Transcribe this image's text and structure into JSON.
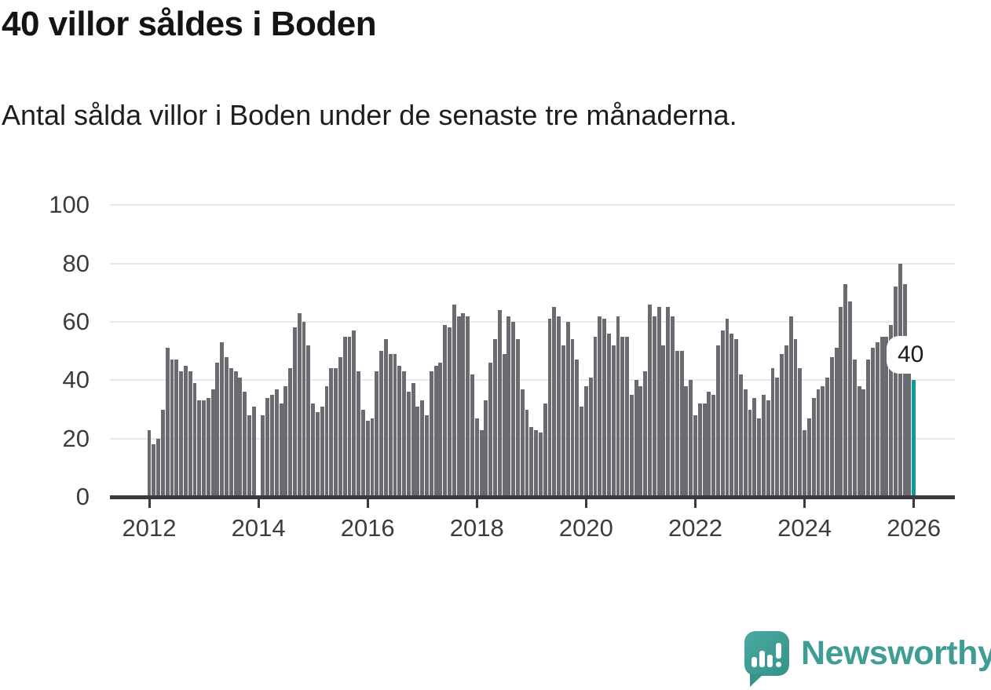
{
  "header": {
    "title": "40 villor såldes i Boden",
    "subtitle": "Antal sålda villor i Boden under de senaste tre månaderna."
  },
  "chart_data": {
    "type": "bar",
    "title": "40 villor såldes i Boden",
    "subtitle": "Antal sålda villor i Boden under de senaste tre månaderna.",
    "unit": "sålda villor (rullande 3 månader)",
    "x_start": "2012-01",
    "frequency": "monthly",
    "x_tick_labels": [
      "2012",
      "2014",
      "2016",
      "2018",
      "2020",
      "2022",
      "2024",
      "2026"
    ],
    "y_ticks": [
      0,
      20,
      40,
      60,
      80,
      100
    ],
    "ylim": [
      0,
      100
    ],
    "grid": true,
    "values": [
      23,
      18,
      20,
      30,
      51,
      47,
      47,
      43,
      45,
      43,
      39,
      33,
      33,
      34,
      37,
      46,
      53,
      48,
      44,
      43,
      41,
      36,
      28,
      31,
      0,
      28,
      34,
      35,
      37,
      32,
      38,
      44,
      58,
      63,
      60,
      52,
      32,
      29,
      31,
      38,
      44,
      44,
      48,
      55,
      55,
      57,
      43,
      30,
      26,
      27,
      43,
      50,
      54,
      49,
      49,
      45,
      43,
      36,
      39,
      31,
      33,
      28,
      43,
      45,
      46,
      59,
      58,
      66,
      62,
      63,
      62,
      42,
      27,
      23,
      33,
      46,
      54,
      64,
      49,
      62,
      60,
      54,
      37,
      30,
      24,
      23,
      22,
      32,
      61,
      65,
      62,
      52,
      60,
      54,
      47,
      31,
      38,
      41,
      55,
      62,
      61,
      56,
      52,
      62,
      55,
      55,
      35,
      40,
      38,
      43,
      66,
      62,
      65,
      52,
      65,
      62,
      50,
      50,
      38,
      40,
      28,
      32,
      32,
      36,
      35,
      52,
      57,
      61,
      56,
      54,
      42,
      37,
      30,
      34,
      27,
      35,
      33,
      44,
      41,
      49,
      52,
      62,
      54,
      44,
      23,
      27,
      34,
      37,
      38,
      41,
      48,
      51,
      65,
      73,
      67,
      47,
      38,
      37,
      47,
      51,
      53,
      55,
      55,
      59,
      72,
      80,
      73,
      55,
      40
    ],
    "highlight": {
      "index": 168,
      "value": 40,
      "label": "40",
      "color": "#0e9b9d"
    },
    "bar_color": "#6a6a70",
    "gridline_color": "#e9e9e9",
    "axis_color": "#3a3a3f",
    "legend_position": "none"
  },
  "footer": {
    "logo_text": "Newsworthy",
    "logo_color": "#3f9d96"
  }
}
